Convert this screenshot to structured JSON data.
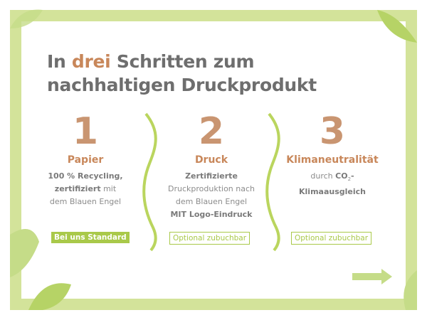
{
  "title": {
    "line1_pre": "In ",
    "line1_highlight": "drei",
    "line1_post": " Schritten zum",
    "line2": "nachhaltigen Druckprodukt"
  },
  "steps": [
    {
      "number": "1",
      "label": "Papier",
      "desc": [
        {
          "bold": "100 % Recycling,",
          "normal": ""
        },
        {
          "bold": "zertifiziert",
          "normal": " mit"
        },
        {
          "bold": "",
          "normal": "dem Blauen Engel"
        }
      ],
      "badge": "Bei uns Standard"
    },
    {
      "number": "2",
      "label": "Druck",
      "desc": [
        {
          "bold": "Zertifizierte",
          "normal": ""
        },
        {
          "bold": "",
          "normal": "Druckproduktion nach"
        },
        {
          "bold": "",
          "normal": "dem Blauen Engel"
        },
        {
          "bold": "MIT Logo-Eindruck",
          "normal": ""
        }
      ],
      "badge": "Optional zubuchbar"
    },
    {
      "number": "3",
      "label": "Klimaneutralität",
      "desc_pre": "durch ",
      "desc_co": "CO",
      "desc_sub": "2",
      "desc_post": "-",
      "desc_line2": "Klimaausgleich",
      "badge": "Optional zubuchbar"
    }
  ],
  "colors": {
    "accent": "#c8875a",
    "green": "#a9c94a",
    "frame": "#d3e39a"
  }
}
